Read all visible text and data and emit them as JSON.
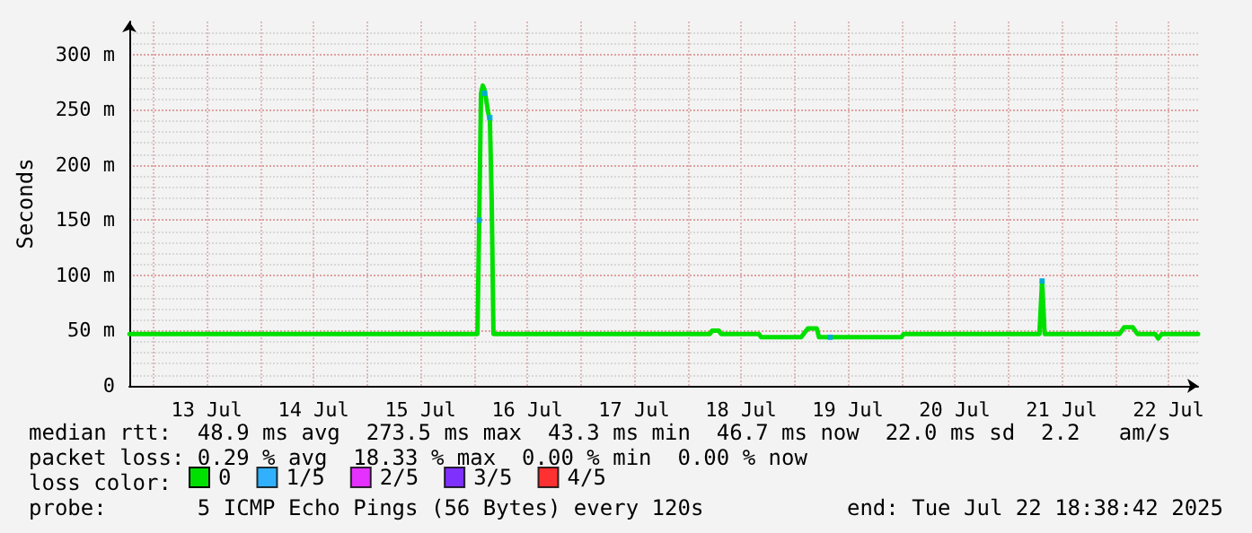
{
  "chart_data": {
    "type": "line",
    "ylabel": "Seconds",
    "legend_title": "loss color:",
    "legend": "bottom",
    "grid": true,
    "line_style": "solid",
    "xlim": [
      "2025-07-12T18:38",
      "2025-07-22T18:38"
    ],
    "ylim": [
      0,
      330
    ],
    "yticks": [
      0,
      {
        "value": 50,
        "label": "50 m"
      },
      {
        "value": 100,
        "label": "100 m"
      },
      {
        "value": 150,
        "label": "150 m"
      },
      {
        "value": 200,
        "label": "200 m"
      },
      {
        "value": 250,
        "label": "250 m"
      },
      {
        "value": 300,
        "label": "300 m"
      }
    ],
    "xticks": [
      {
        "value": "2025-07-13T00:00",
        "label": null
      },
      {
        "value": "2025-07-13T12:00",
        "label": "13 Jul"
      },
      {
        "value": "2025-07-14T00:00",
        "label": null
      },
      {
        "value": "2025-07-14T12:00",
        "label": "14 Jul"
      },
      {
        "value": "2025-07-15T00:00",
        "label": null
      },
      {
        "value": "2025-07-15T12:00",
        "label": "15 Jul"
      },
      {
        "value": "2025-07-16T00:00",
        "label": null
      },
      {
        "value": "2025-07-16T12:00",
        "label": "16 Jul"
      },
      {
        "value": "2025-07-17T00:00",
        "label": null
      },
      {
        "value": "2025-07-17T12:00",
        "label": "17 Jul"
      },
      {
        "value": "2025-07-18T00:00",
        "label": null
      },
      {
        "value": "2025-07-18T12:00",
        "label": "18 Jul"
      },
      {
        "value": "2025-07-19T00:00",
        "label": null
      },
      {
        "value": "2025-07-19T12:00",
        "label": "19 Jul"
      },
      {
        "value": "2025-07-20T00:00",
        "label": null
      },
      {
        "value": "2025-07-20T12:00",
        "label": "20 Jul"
      },
      {
        "value": "2025-07-21T00:00",
        "label": null
      },
      {
        "value": "2025-07-21T12:00",
        "label": "21 Jul"
      },
      {
        "value": "2025-07-22T00:00",
        "label": null
      },
      {
        "value": "2025-07-22T12:00",
        "label": "22 Jul"
      }
    ],
    "series": [
      {
        "name": "0",
        "color": "#00e000",
        "marker": "none",
        "x": [
          "2025-07-12T18:40",
          "2025-07-16T00:48",
          "2025-07-16T01:12",
          "2025-07-16T01:36",
          "2025-07-16T02:00",
          "2025-07-16T02:24",
          "2025-07-16T02:48",
          "2025-07-16T03:12",
          "2025-07-16T03:36",
          "2025-07-16T04:00",
          "2025-07-16T04:24",
          "2025-07-18T05:00",
          "2025-07-18T05:30",
          "2025-07-18T07:00",
          "2025-07-18T07:30",
          "2025-07-18T16:00",
          "2025-07-18T16:30",
          "2025-07-19T01:30",
          "2025-07-19T03:00",
          "2025-07-19T05:00",
          "2025-07-19T05:30",
          "2025-07-20T00:00",
          "2025-07-20T00:30",
          "2025-07-21T07:00",
          "2025-07-21T07:36",
          "2025-07-21T08:10",
          "2025-07-22T01:00",
          "2025-07-22T02:00",
          "2025-07-22T04:00",
          "2025-07-22T05:00",
          "2025-07-22T09:00",
          "2025-07-22T09:40",
          "2025-07-22T10:30",
          "2025-07-22T18:38"
        ],
        "values": [
          47,
          47,
          150,
          265,
          272,
          268,
          258,
          248,
          240,
          168,
          47,
          47,
          50,
          50,
          47,
          47,
          44,
          44,
          52,
          52,
          44,
          44,
          47,
          47,
          95,
          47,
          47,
          53,
          53,
          47,
          47,
          43,
          47,
          47
        ]
      },
      {
        "name": "1/5",
        "color": "#00a0ff",
        "type": "scatter",
        "marker": "square",
        "x": [
          "2025-07-16T01:12",
          "2025-07-16T02:24",
          "2025-07-16T03:36",
          "2025-07-19T08:00",
          "2025-07-21T07:36"
        ],
        "values": [
          150,
          265,
          243,
          44,
          95
        ]
      },
      {
        "name": "2/5",
        "color": "#e000ff",
        "type": "scatter"
      },
      {
        "name": "3/5",
        "color": "#6000ff",
        "type": "scatter"
      },
      {
        "name": "4/5",
        "color": "#ff0000",
        "type": "scatter"
      }
    ],
    "annotations": [
      "median rtt:  48.9 ms avg  273.5 ms max  43.3 ms min  46.7 ms now  22.0 ms sd  2.2   am/s",
      "packet loss: 0.29 % avg  18.33 % max  0.00 % min  0.00 % now",
      "probe:       5 ICMP Echo Pings (56 Bytes) every 120s",
      "end: Tue Jul 22 18:38:42 2025"
    ]
  }
}
